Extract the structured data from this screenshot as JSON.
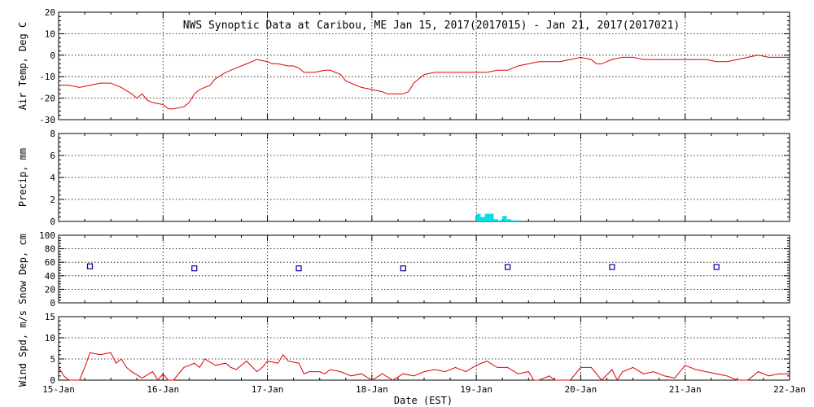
{
  "title": "NWS Synoptic Data at Caribou, ME   Jan 15, 2017(2017015) - Jan 21, 2017(2017021)",
  "colors": {
    "trace": "#dd0000",
    "precip": "#00e0e8",
    "snow_marker": "#000099",
    "axis": "#000000"
  },
  "chart_data": [
    {
      "type": "line",
      "title": "NWS Synoptic Data at Caribou, ME   Jan 15, 2017(2017015) - Jan 21, 2017(2017021)",
      "ylabel": "Air Temp, Deg C",
      "xlabel": "",
      "ylim": [
        -30,
        20
      ],
      "yticks": [
        "-30",
        "-20",
        "-10",
        "0",
        "10",
        "20"
      ],
      "grid": true,
      "series": [
        {
          "x": [
            15.0,
            15.1,
            15.2,
            15.3,
            15.4,
            15.5,
            15.6,
            15.7,
            15.75,
            15.8,
            15.85,
            15.9,
            16.0,
            16.05,
            16.1,
            16.2,
            16.25,
            16.3,
            16.35,
            16.45,
            16.5,
            16.6,
            16.7,
            16.8,
            16.9,
            17.0,
            17.05,
            17.1,
            17.2,
            17.25,
            17.3,
            17.35,
            17.45,
            17.55,
            17.6,
            17.7,
            17.75,
            17.8,
            17.9,
            18.0,
            18.1,
            18.15,
            18.25,
            18.3,
            18.35,
            18.4,
            18.5,
            18.6,
            18.7,
            18.8,
            18.9,
            19.0,
            19.1,
            19.2,
            19.3,
            19.4,
            19.5,
            19.6,
            19.7,
            19.8,
            19.9,
            20.0,
            20.1,
            20.15,
            20.2,
            20.25,
            20.3,
            20.4,
            20.5,
            20.6,
            20.7,
            20.8,
            20.9,
            21.0,
            21.1,
            21.2,
            21.3,
            21.4,
            21.5,
            21.6,
            21.7,
            21.8,
            21.9,
            22.0
          ],
          "y": [
            -14,
            -14,
            -15,
            -14,
            -13,
            -13,
            -15,
            -18,
            -20,
            -18,
            -21,
            -22,
            -23,
            -25,
            -25,
            -24,
            -22,
            -18,
            -16,
            -14,
            -11,
            -8,
            -6,
            -4,
            -2,
            -3,
            -4,
            -4,
            -5,
            -5,
            -6,
            -8,
            -8,
            -7,
            -7,
            -9,
            -12,
            -13,
            -15,
            -16,
            -17,
            -18,
            -18,
            -18,
            -17,
            -13,
            -9,
            -8,
            -8,
            -8,
            -8,
            -8,
            -8,
            -7,
            -7,
            -5,
            -4,
            -3,
            -3,
            -3,
            -2,
            -1,
            -2,
            -4,
            -4,
            -3,
            -2,
            -1,
            -1,
            -2,
            -2,
            -2,
            -2,
            -2,
            -2,
            -2,
            -3,
            -3,
            -2,
            -1,
            0,
            -1,
            -1,
            -1
          ]
        }
      ]
    },
    {
      "type": "bar",
      "ylabel": "Precip, mm",
      "xlabel": "",
      "ylim": [
        0,
        8
      ],
      "yticks": [
        "0",
        "2",
        "4",
        "6",
        "8"
      ],
      "grid": true,
      "bar_width_days": 0.0417,
      "series": [
        {
          "x": [
            19.0,
            19.0417,
            19.0833,
            19.125,
            19.1667,
            19.2083,
            19.25,
            19.2917,
            19.3333,
            19.375
          ],
          "y": [
            0.7,
            0.4,
            0.7,
            0.7,
            0.2,
            0.1,
            0.5,
            0.2,
            0.1,
            0.1
          ]
        }
      ]
    },
    {
      "type": "scatter",
      "ylabel": "Snow Dep, cm",
      "xlabel": "",
      "ylim": [
        0,
        100
      ],
      "yticks": [
        "0",
        "20",
        "40",
        "60",
        "80",
        "100"
      ],
      "grid": true,
      "series": [
        {
          "x": [
            15.3,
            16.3,
            17.3,
            18.3,
            19.3,
            20.3,
            21.3
          ],
          "y": [
            54,
            51,
            51,
            51,
            53,
            53,
            53
          ]
        }
      ]
    },
    {
      "type": "line",
      "ylabel": "Wind Spd, m/s",
      "xlabel": "Date (EST)",
      "ylim": [
        0,
        15
      ],
      "yticks": [
        "0",
        "5",
        "10",
        "15"
      ],
      "grid": true,
      "xticks": [
        "15-Jan",
        "16-Jan",
        "17-Jan",
        "18-Jan",
        "19-Jan",
        "20-Jan",
        "21-Jan",
        "22-Jan"
      ],
      "series": [
        {
          "x": [
            15.0,
            15.05,
            15.1,
            15.2,
            15.25,
            15.3,
            15.4,
            15.5,
            15.55,
            15.6,
            15.65,
            15.7,
            15.8,
            15.9,
            15.95,
            16.0,
            16.05,
            16.1,
            16.2,
            16.3,
            16.35,
            16.4,
            16.5,
            16.6,
            16.65,
            16.7,
            16.8,
            16.9,
            16.95,
            17.0,
            17.1,
            17.15,
            17.2,
            17.3,
            17.35,
            17.4,
            17.5,
            17.55,
            17.6,
            17.7,
            17.8,
            17.9,
            18.0,
            18.1,
            18.2,
            18.3,
            18.4,
            18.5,
            18.6,
            18.7,
            18.8,
            18.9,
            19.0,
            19.1,
            19.2,
            19.3,
            19.4,
            19.5,
            19.55,
            19.6,
            19.7,
            19.75,
            19.8,
            19.9,
            20.0,
            20.1,
            20.2,
            20.3,
            20.35,
            20.4,
            20.5,
            20.6,
            20.7,
            20.8,
            20.9,
            21.0,
            21.1,
            21.2,
            21.3,
            21.4,
            21.5,
            21.6,
            21.7,
            21.8,
            21.9,
            22.0
          ],
          "y": [
            3,
            1,
            0,
            0,
            3,
            6.5,
            6,
            6.5,
            4,
            5,
            3,
            2,
            0.5,
            2,
            0,
            1.5,
            0,
            0,
            3,
            4,
            3,
            5,
            3.5,
            4,
            3,
            2.5,
            4.5,
            2,
            3,
            4.5,
            4,
            6,
            4.5,
            4,
            1.5,
            2,
            2,
            1.5,
            2.5,
            2,
            1,
            1.5,
            0,
            1.5,
            0,
            1.5,
            1,
            2,
            2.5,
            2,
            3,
            2,
            3.5,
            4.5,
            3,
            3,
            1.5,
            2,
            0,
            0,
            1,
            0,
            0,
            0,
            3,
            3,
            0,
            2.5,
            0,
            2,
            3,
            1.5,
            2,
            1,
            0.5,
            3.5,
            2.5,
            2,
            1.5,
            1,
            0,
            0,
            2,
            1,
            1.5,
            1.5
          ]
        }
      ]
    }
  ]
}
